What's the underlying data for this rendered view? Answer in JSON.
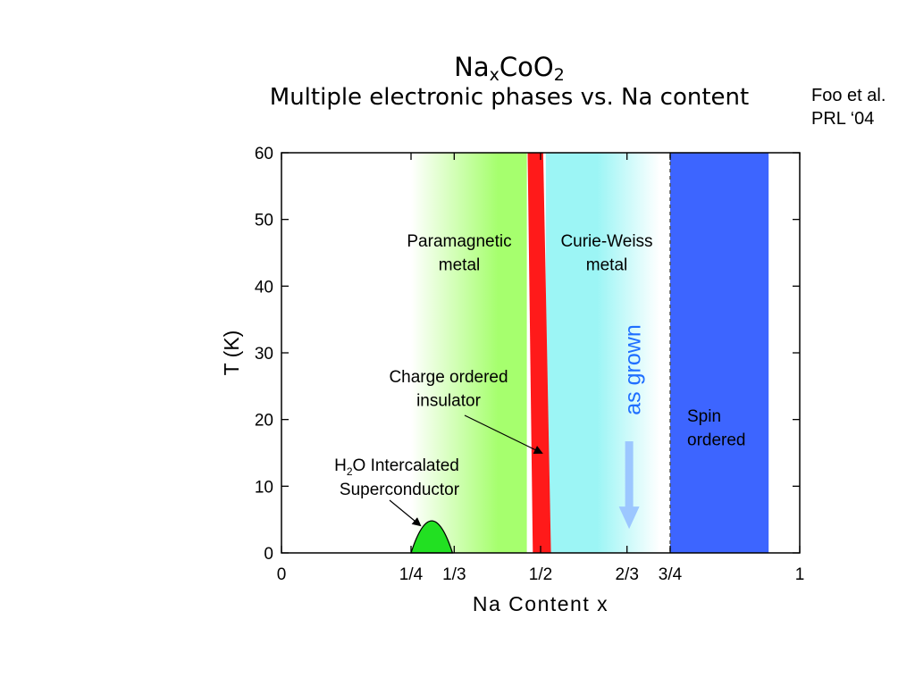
{
  "title": {
    "main": "NaxCoO2",
    "main_base": "Na",
    "main_sub1": "x",
    "main_mid": "CoO",
    "main_sub2": "2",
    "subtitle": "Multiple electronic phases vs. Na content"
  },
  "citation": {
    "line1": "Foo et al.",
    "line2": "PRL ‘04"
  },
  "colors": {
    "paramagnetic": "#a6ff6e",
    "charge_ordered": "#ff1a1a",
    "curie_weiss": "#9cf5f5",
    "spin_ordered": "#3d65ff",
    "superconductor": "#22e022",
    "as_grown_text": "#1f6fff",
    "as_grown_arrow": "#9cc7ff"
  },
  "chart_data": {
    "type": "area",
    "title": "NaxCoO2 Multiple electronic phases vs. Na content",
    "xlabel": "Na Content   x",
    "ylabel": "T (K)",
    "xlim": [
      0,
      1
    ],
    "ylim": [
      0,
      60
    ],
    "x_ticks": [
      {
        "value": 0,
        "label": "0"
      },
      {
        "value": 0.25,
        "label": "1/4"
      },
      {
        "value": 0.3333,
        "label": "1/3"
      },
      {
        "value": 0.5,
        "label": "1/2"
      },
      {
        "value": 0.6667,
        "label": "2/3"
      },
      {
        "value": 0.75,
        "label": "3/4"
      },
      {
        "value": 1,
        "label": "1"
      }
    ],
    "y_ticks": [
      {
        "value": 0,
        "label": "0"
      },
      {
        "value": 10,
        "label": "10"
      },
      {
        "value": 20,
        "label": "20"
      },
      {
        "value": 30,
        "label": "30"
      },
      {
        "value": 40,
        "label": "40"
      },
      {
        "value": 50,
        "label": "50"
      },
      {
        "value": 60,
        "label": "60"
      }
    ],
    "regions": [
      {
        "name": "Paramagnetic metal",
        "label_lines": [
          "Paramagnetic",
          "metal"
        ],
        "x_start": 0.25,
        "x_end": 0.47,
        "fade_start": true,
        "label_x": 0.37,
        "label_y": 46
      },
      {
        "name": "Charge ordered insulator",
        "label_lines": [
          "Charge ordered",
          "insulator"
        ],
        "x_start_bottom": 0.485,
        "x_end_bottom": 0.52,
        "x_start_top": 0.475,
        "x_end_top": 0.505
      },
      {
        "name": "Curie-Weiss metal",
        "label_lines": [
          "Curie-Weiss",
          "metal"
        ],
        "x_start": 0.51,
        "x_end": 0.73,
        "fade_end": true,
        "label_x": 0.62,
        "label_y": 46
      },
      {
        "name": "Spin ordered",
        "label_lines": [
          "Spin",
          "ordered"
        ],
        "x_start": 0.75,
        "x_end": 0.94,
        "label_x": 0.79,
        "label_y": 19
      },
      {
        "name": "H2O Intercalated Superconductor",
        "label_lines": [
          "H2O Intercalated",
          "Superconductor"
        ],
        "x_start": 0.25,
        "x_end": 0.33,
        "peak_x": 0.29,
        "peak_T": 4.5
      }
    ],
    "annotations": [
      {
        "text": "as grown",
        "x": 0.67,
        "arrow_from_T": 17,
        "arrow_to_T": 4
      }
    ],
    "dashed_line_x": 0.75,
    "grid": false
  }
}
